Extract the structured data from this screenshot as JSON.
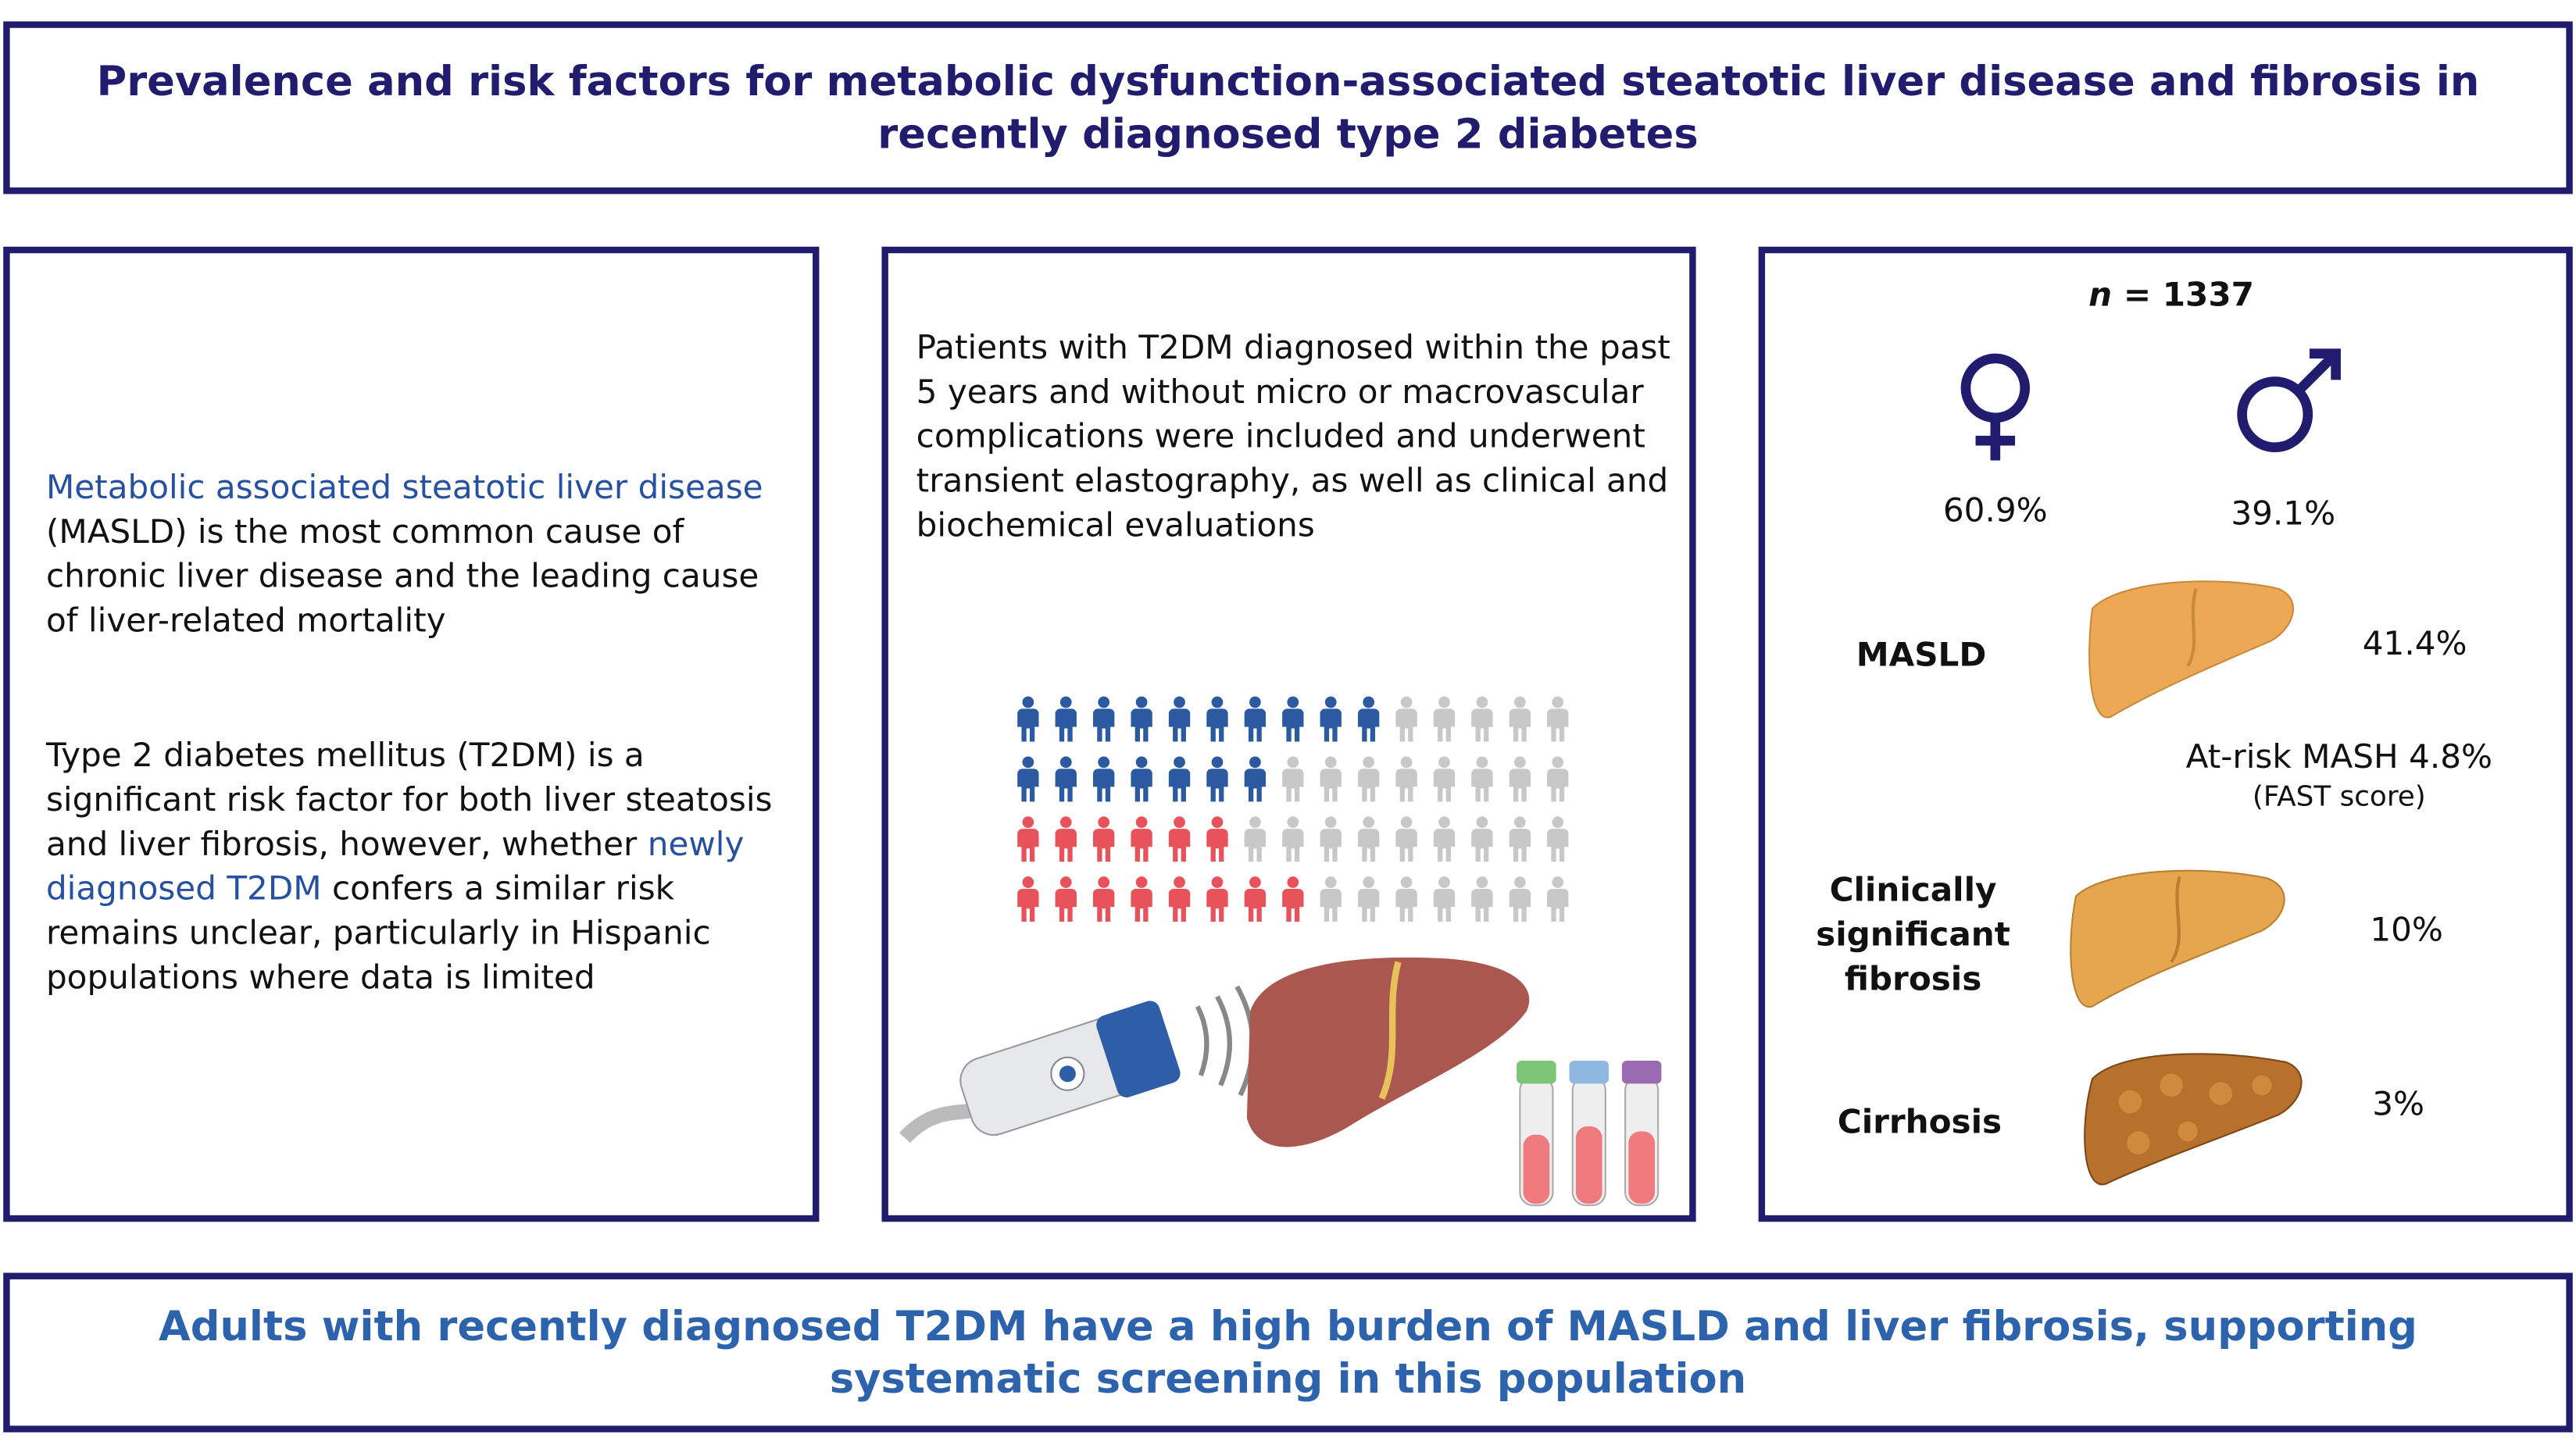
{
  "header": {
    "title": "Prevalence and risk factors for metabolic dysfunction-associated steatotic liver disease and fibrosis in recently diagnosed type 2 diabetes"
  },
  "background": {
    "paragraphs": [
      [
        "Metabolic associated steatotic liver disease",
        " (MASLD) is the most common cause of chronic liver disease and the leading cause of liver-related mortality"
      ],
      [
        "Type 2 diabetes mellitus (T2DM) is a significant risk factor for both liver steatosis and liver fibrosis, however, whether ",
        "newly diagnosed T2DM",
        " confers a similar risk remains unclear, particularly in Hispanic populations where data is limited"
      ]
    ]
  },
  "methods": {
    "text": "Patients with T2DM diagnosed within the past 5 years and without micro or macrovascular complications were included and underwent transient elastography, as well as clinical and biochemical evaluations"
  },
  "results": {
    "n_label": "n",
    "n_value": "= 1337",
    "female": "60.9%",
    "male": "39.1%",
    "masld": {
      "label": "MASLD",
      "value": "41.4%"
    },
    "mash": {
      "label": "At-risk MASH 4.8%",
      "note": "(FAST score)"
    },
    "fibrosis": {
      "label": [
        "Clinically",
        "significant",
        "fibrosis"
      ],
      "value": "10%"
    },
    "cirrhosis": {
      "label": "Cirrhosis",
      "value": "3%"
    }
  },
  "conclusion": {
    "text": "Adults with recently diagnosed T2DM have a high burden of MASLD and liver fibrosis, supporting systematic screening in this population"
  }
}
